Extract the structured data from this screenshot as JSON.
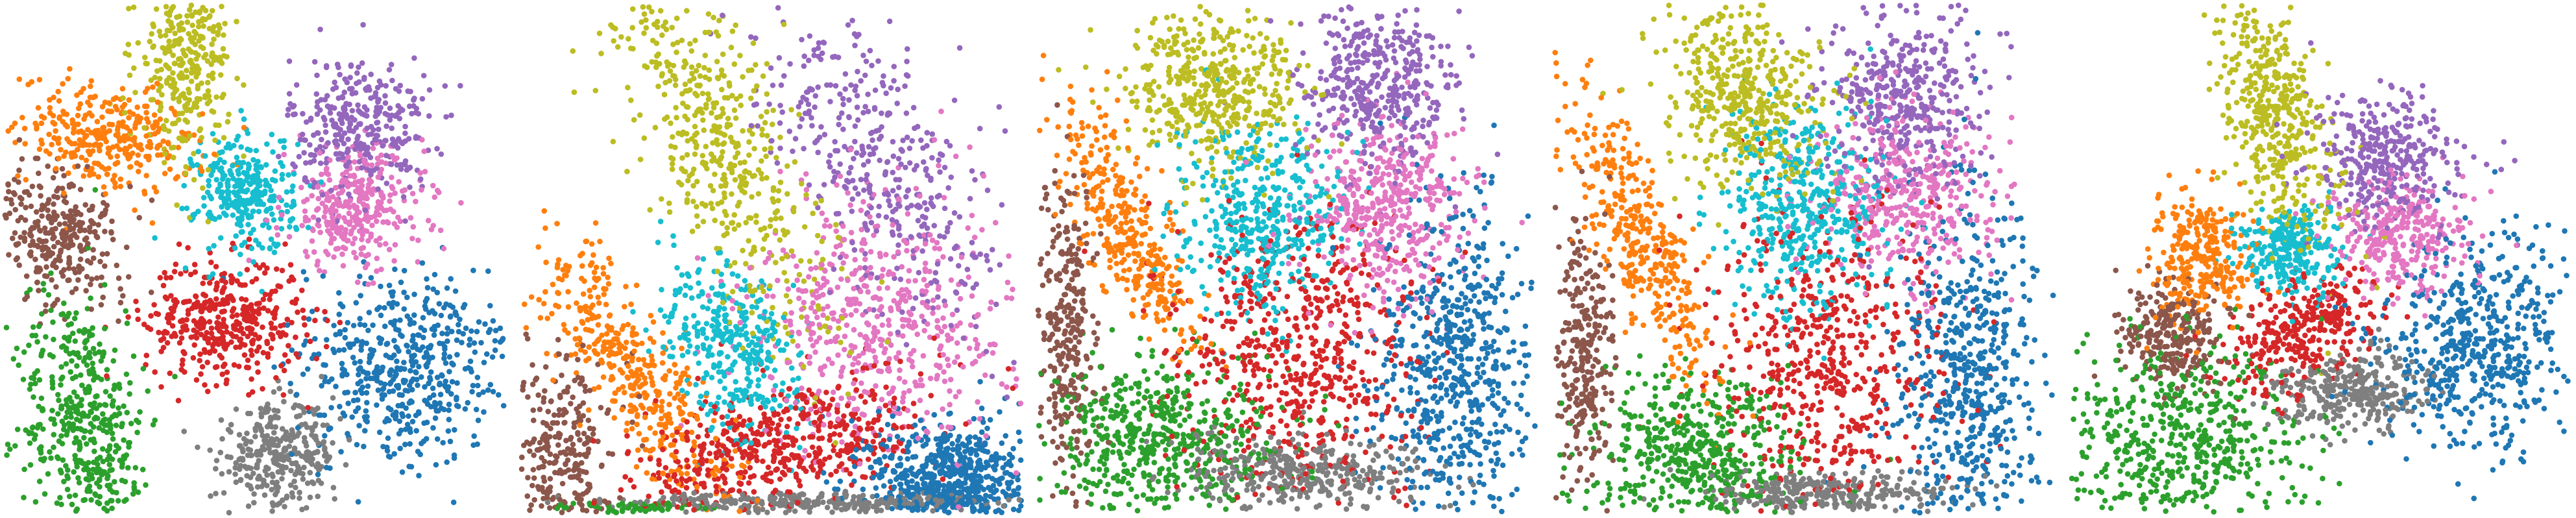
{
  "chart_data": [
    {
      "type": "scatter",
      "title": "",
      "xlabel": "",
      "ylabel": "",
      "grid": false,
      "legend": "none",
      "series": [
        {
          "color": "#1f77b4",
          "clusters": [
            {
              "cx": 0.8,
              "cy": 0.28,
              "sx": 0.1,
              "sy": 0.1,
              "rot": -20,
              "n": 520
            }
          ]
        },
        {
          "color": "#ff7f0e",
          "clusters": [
            {
              "cx": 0.2,
              "cy": 0.74,
              "sx": 0.09,
              "sy": 0.05,
              "rot": -10,
              "n": 330
            }
          ]
        },
        {
          "color": "#2ca02c",
          "clusters": [
            {
              "cx": 0.16,
              "cy": 0.18,
              "sx": 0.06,
              "sy": 0.13,
              "rot": 10,
              "n": 480
            }
          ]
        },
        {
          "color": "#d62728",
          "clusters": [
            {
              "cx": 0.44,
              "cy": 0.38,
              "sx": 0.08,
              "sy": 0.06,
              "rot": 0,
              "n": 420
            }
          ]
        },
        {
          "color": "#9467bd",
          "clusters": [
            {
              "cx": 0.71,
              "cy": 0.76,
              "sx": 0.07,
              "sy": 0.07,
              "rot": 0,
              "n": 330
            }
          ]
        },
        {
          "color": "#8c564b",
          "clusters": [
            {
              "cx": 0.1,
              "cy": 0.55,
              "sx": 0.08,
              "sy": 0.06,
              "rot": -40,
              "n": 330
            }
          ]
        },
        {
          "color": "#e377c2",
          "clusters": [
            {
              "cx": 0.7,
              "cy": 0.6,
              "sx": 0.07,
              "sy": 0.06,
              "rot": 0,
              "n": 330
            }
          ]
        },
        {
          "color": "#7f7f7f",
          "clusters": [
            {
              "cx": 0.55,
              "cy": 0.11,
              "sx": 0.06,
              "sy": 0.05,
              "rot": 10,
              "n": 330
            }
          ]
        },
        {
          "color": "#bcbd22",
          "clusters": [
            {
              "cx": 0.36,
              "cy": 0.89,
              "sx": 0.045,
              "sy": 0.09,
              "rot": 0,
              "n": 330
            }
          ]
        },
        {
          "color": "#17becf",
          "clusters": [
            {
              "cx": 0.48,
              "cy": 0.63,
              "sx": 0.05,
              "sy": 0.06,
              "rot": 0,
              "n": 300
            }
          ]
        }
      ]
    },
    {
      "type": "scatter",
      "title": "",
      "xlabel": "",
      "ylabel": "",
      "grid": false,
      "legend": "none",
      "series": [
        {
          "color": "#1f77b4",
          "clusters": [
            {
              "cx": 0.86,
              "cy": 0.06,
              "sx": 0.08,
              "sy": 0.06,
              "rot": 0,
              "n": 700
            }
          ]
        },
        {
          "color": "#ff7f0e",
          "clusters": [
            {
              "cx": 0.22,
              "cy": 0.28,
              "sx": 0.05,
              "sy": 0.16,
              "rot": 35,
              "n": 420
            }
          ]
        },
        {
          "color": "#2ca02c",
          "clusters": [
            {
              "cx": 0.24,
              "cy": 0.01,
              "sx": 0.08,
              "sy": 0.005,
              "rot": 0,
              "n": 60
            }
          ]
        },
        {
          "color": "#d62728",
          "clusters": [
            {
              "cx": 0.52,
              "cy": 0.13,
              "sx": 0.15,
              "sy": 0.06,
              "rot": 15,
              "n": 520
            }
          ]
        },
        {
          "color": "#9467bd",
          "clusters": [
            {
              "cx": 0.72,
              "cy": 0.68,
              "sx": 0.08,
              "sy": 0.18,
              "rot": 30,
              "n": 420
            }
          ]
        },
        {
          "color": "#8c564b",
          "clusters": [
            {
              "cx": 0.08,
              "cy": 0.12,
              "sx": 0.05,
              "sy": 0.1,
              "rot": 0,
              "n": 300
            }
          ]
        },
        {
          "color": "#e377c2",
          "clusters": [
            {
              "cx": 0.72,
              "cy": 0.38,
              "sx": 0.13,
              "sy": 0.13,
              "rot": 0,
              "n": 560
            }
          ]
        },
        {
          "color": "#7f7f7f",
          "clusters": [
            {
              "cx": 0.6,
              "cy": 0.02,
              "sx": 0.2,
              "sy": 0.01,
              "rot": 0,
              "n": 320
            }
          ]
        },
        {
          "color": "#bcbd22",
          "clusters": [
            {
              "cx": 0.4,
              "cy": 0.72,
              "sx": 0.07,
              "sy": 0.22,
              "rot": 25,
              "n": 540
            }
          ]
        },
        {
          "color": "#17becf",
          "clusters": [
            {
              "cx": 0.42,
              "cy": 0.33,
              "sx": 0.06,
              "sy": 0.09,
              "rot": 30,
              "n": 360
            }
          ]
        }
      ]
    },
    {
      "type": "scatter",
      "title": "",
      "xlabel": "",
      "ylabel": "",
      "grid": false,
      "legend": "none",
      "series": [
        {
          "color": "#1f77b4",
          "clusters": [
            {
              "cx": 0.84,
              "cy": 0.28,
              "sx": 0.08,
              "sy": 0.17,
              "rot": 0,
              "n": 650
            }
          ]
        },
        {
          "color": "#ff7f0e",
          "clusters": [
            {
              "cx": 0.18,
              "cy": 0.55,
              "sx": 0.04,
              "sy": 0.13,
              "rot": 25,
              "n": 360
            }
          ]
        },
        {
          "color": "#2ca02c",
          "clusters": [
            {
              "cx": 0.24,
              "cy": 0.14,
              "sx": 0.12,
              "sy": 0.08,
              "rot": 0,
              "n": 560
            }
          ]
        },
        {
          "color": "#d62728",
          "clusters": [
            {
              "cx": 0.53,
              "cy": 0.32,
              "sx": 0.12,
              "sy": 0.14,
              "rot": 0,
              "n": 620
            }
          ]
        },
        {
          "color": "#9467bd",
          "clusters": [
            {
              "cx": 0.67,
              "cy": 0.84,
              "sx": 0.08,
              "sy": 0.09,
              "rot": 0,
              "n": 420
            }
          ]
        },
        {
          "color": "#8c564b",
          "clusters": [
            {
              "cx": 0.06,
              "cy": 0.34,
              "sx": 0.03,
              "sy": 0.16,
              "rot": 0,
              "n": 300
            }
          ]
        },
        {
          "color": "#e377c2",
          "clusters": [
            {
              "cx": 0.7,
              "cy": 0.6,
              "sx": 0.08,
              "sy": 0.09,
              "rot": 0,
              "n": 450
            }
          ]
        },
        {
          "color": "#7f7f7f",
          "clusters": [
            {
              "cx": 0.53,
              "cy": 0.08,
              "sx": 0.13,
              "sy": 0.035,
              "rot": 0,
              "n": 380
            }
          ]
        },
        {
          "color": "#bcbd22",
          "clusters": [
            {
              "cx": 0.36,
              "cy": 0.84,
              "sx": 0.09,
              "sy": 0.08,
              "rot": 0,
              "n": 460
            }
          ]
        },
        {
          "color": "#17becf",
          "clusters": [
            {
              "cx": 0.44,
              "cy": 0.58,
              "sx": 0.08,
              "sy": 0.09,
              "rot": 0,
              "n": 420
            }
          ]
        }
      ]
    },
    {
      "type": "scatter",
      "title": "",
      "xlabel": "",
      "ylabel": "",
      "grid": false,
      "legend": "none",
      "series": [
        {
          "color": "#1f77b4",
          "clusters": [
            {
              "cx": 0.83,
              "cy": 0.26,
              "sx": 0.07,
              "sy": 0.18,
              "rot": 0,
              "n": 600
            }
          ]
        },
        {
          "color": "#ff7f0e",
          "clusters": [
            {
              "cx": 0.17,
              "cy": 0.55,
              "sx": 0.04,
              "sy": 0.16,
              "rot": 25,
              "n": 380
            }
          ]
        },
        {
          "color": "#2ca02c",
          "clusters": [
            {
              "cx": 0.28,
              "cy": 0.12,
              "sx": 0.11,
              "sy": 0.08,
              "rot": 0,
              "n": 520
            }
          ]
        },
        {
          "color": "#d62728",
          "clusters": [
            {
              "cx": 0.53,
              "cy": 0.3,
              "sx": 0.12,
              "sy": 0.15,
              "rot": 0,
              "n": 560
            }
          ]
        },
        {
          "color": "#9467bd",
          "clusters": [
            {
              "cx": 0.7,
              "cy": 0.83,
              "sx": 0.08,
              "sy": 0.09,
              "rot": 0,
              "n": 420
            }
          ]
        },
        {
          "color": "#8c564b",
          "clusters": [
            {
              "cx": 0.06,
              "cy": 0.3,
              "sx": 0.03,
              "sy": 0.14,
              "rot": 0,
              "n": 280
            }
          ]
        },
        {
          "color": "#e377c2",
          "clusters": [
            {
              "cx": 0.7,
              "cy": 0.62,
              "sx": 0.09,
              "sy": 0.08,
              "rot": 0,
              "n": 420
            }
          ]
        },
        {
          "color": "#7f7f7f",
          "clusters": [
            {
              "cx": 0.55,
              "cy": 0.04,
              "sx": 0.12,
              "sy": 0.02,
              "rot": 0,
              "n": 300
            }
          ]
        },
        {
          "color": "#bcbd22",
          "clusters": [
            {
              "cx": 0.38,
              "cy": 0.83,
              "sx": 0.08,
              "sy": 0.1,
              "rot": 25,
              "n": 460
            }
          ]
        },
        {
          "color": "#17becf",
          "clusters": [
            {
              "cx": 0.5,
              "cy": 0.6,
              "sx": 0.08,
              "sy": 0.1,
              "rot": 0,
              "n": 460
            }
          ]
        }
      ]
    },
    {
      "type": "scatter",
      "title": "",
      "xlabel": "",
      "ylabel": "",
      "grid": false,
      "legend": "none",
      "series": [
        {
          "color": "#1f77b4",
          "clusters": [
            {
              "cx": 0.81,
              "cy": 0.33,
              "sx": 0.09,
              "sy": 0.1,
              "rot": -15,
              "n": 520
            }
          ]
        },
        {
          "color": "#ff7f0e",
          "clusters": [
            {
              "cx": 0.26,
              "cy": 0.5,
              "sx": 0.05,
              "sy": 0.06,
              "rot": 0,
              "n": 280
            }
          ]
        },
        {
          "color": "#2ca02c",
          "clusters": [
            {
              "cx": 0.23,
              "cy": 0.14,
              "sx": 0.12,
              "sy": 0.1,
              "rot": 0,
              "n": 560
            }
          ]
        },
        {
          "color": "#d62728",
          "clusters": [
            {
              "cx": 0.46,
              "cy": 0.36,
              "sx": 0.08,
              "sy": 0.05,
              "rot": 30,
              "n": 330
            }
          ]
        },
        {
          "color": "#9467bd",
          "clusters": [
            {
              "cx": 0.63,
              "cy": 0.7,
              "sx": 0.07,
              "sy": 0.07,
              "rot": 0,
              "n": 340
            }
          ]
        },
        {
          "color": "#8c564b",
          "clusters": [
            {
              "cx": 0.2,
              "cy": 0.35,
              "sx": 0.05,
              "sy": 0.05,
              "rot": 0,
              "n": 260
            }
          ]
        },
        {
          "color": "#e377c2",
          "clusters": [
            {
              "cx": 0.66,
              "cy": 0.55,
              "sx": 0.07,
              "sy": 0.06,
              "rot": 0,
              "n": 320
            }
          ]
        },
        {
          "color": "#7f7f7f",
          "clusters": [
            {
              "cx": 0.56,
              "cy": 0.24,
              "sx": 0.08,
              "sy": 0.04,
              "rot": 0,
              "n": 330
            }
          ]
        },
        {
          "color": "#bcbd22",
          "clusters": [
            {
              "cx": 0.41,
              "cy": 0.77,
              "sx": 0.05,
              "sy": 0.14,
              "rot": 15,
              "n": 460
            }
          ]
        },
        {
          "color": "#17becf",
          "clusters": [
            {
              "cx": 0.44,
              "cy": 0.52,
              "sx": 0.05,
              "sy": 0.04,
              "rot": 0,
              "n": 280
            }
          ]
        }
      ]
    }
  ]
}
